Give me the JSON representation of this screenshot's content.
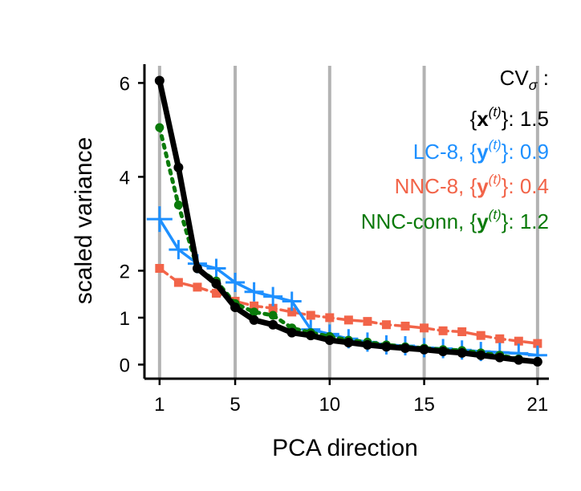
{
  "chart_data": {
    "type": "line",
    "xlabel": "PCA direction",
    "ylabel": "scaled variance",
    "xlim": [
      0.2,
      21.6
    ],
    "ylim": [
      -0.3,
      6.4
    ],
    "x_ticks": [
      1,
      5,
      10,
      15,
      21
    ],
    "y_ticks": [
      0,
      1,
      2,
      4,
      6
    ],
    "vertical_guides": [
      1,
      5,
      10,
      15,
      21
    ],
    "x": [
      1,
      2,
      3,
      4,
      5,
      6,
      7,
      8,
      9,
      10,
      11,
      12,
      13,
      14,
      15,
      16,
      17,
      18,
      19,
      20,
      21
    ],
    "legend_title": "CV",
    "legend_title_sub": "σ",
    "legend_title_suffix": " :",
    "series": [
      {
        "id": "x",
        "color": "#000000",
        "marker": "circle",
        "line": "solid-thick",
        "legend_prefix": "",
        "legend_symbol": "x",
        "legend_value": "1.5",
        "values": [
          6.05,
          4.2,
          2.05,
          1.72,
          1.22,
          0.95,
          0.85,
          0.68,
          0.62,
          0.52,
          0.47,
          0.42,
          0.38,
          0.35,
          0.32,
          0.28,
          0.25,
          0.2,
          0.15,
          0.1,
          0.06
        ]
      },
      {
        "id": "lc8",
        "color": "#1e90ff",
        "marker": "plus",
        "line": "solid",
        "legend_prefix": "LC-8, ",
        "legend_symbol": "y",
        "legend_value": "0.9",
        "values": [
          3.1,
          2.45,
          2.15,
          2.05,
          1.75,
          1.55,
          1.45,
          1.35,
          0.75,
          0.65,
          0.55,
          0.48,
          0.42,
          0.4,
          0.36,
          0.34,
          0.31,
          0.28,
          0.26,
          0.24,
          0.2
        ]
      },
      {
        "id": "nnc8",
        "color": "#f26449",
        "marker": "square",
        "line": "dashed",
        "legend_prefix": "NNC-8, ",
        "legend_symbol": "y",
        "legend_value": "0.4",
        "values": [
          2.05,
          1.75,
          1.65,
          1.52,
          1.35,
          1.25,
          1.2,
          1.12,
          1.05,
          1.0,
          0.95,
          0.92,
          0.85,
          0.82,
          0.78,
          0.72,
          0.7,
          0.62,
          0.55,
          0.5,
          0.45
        ]
      },
      {
        "id": "nncconn",
        "color": "#0a7a0a",
        "marker": "dot",
        "line": "dotted",
        "legend_prefix": "NNC-conn, ",
        "legend_symbol": "y",
        "legend_value": "1.2",
        "values": [
          5.05,
          3.4,
          2.05,
          1.78,
          1.3,
          1.12,
          1.05,
          0.78,
          0.68,
          0.6,
          0.52,
          0.48,
          0.42,
          0.38,
          0.35,
          0.32,
          0.3,
          0.25,
          0.2,
          0.12,
          0.07
        ]
      }
    ]
  }
}
